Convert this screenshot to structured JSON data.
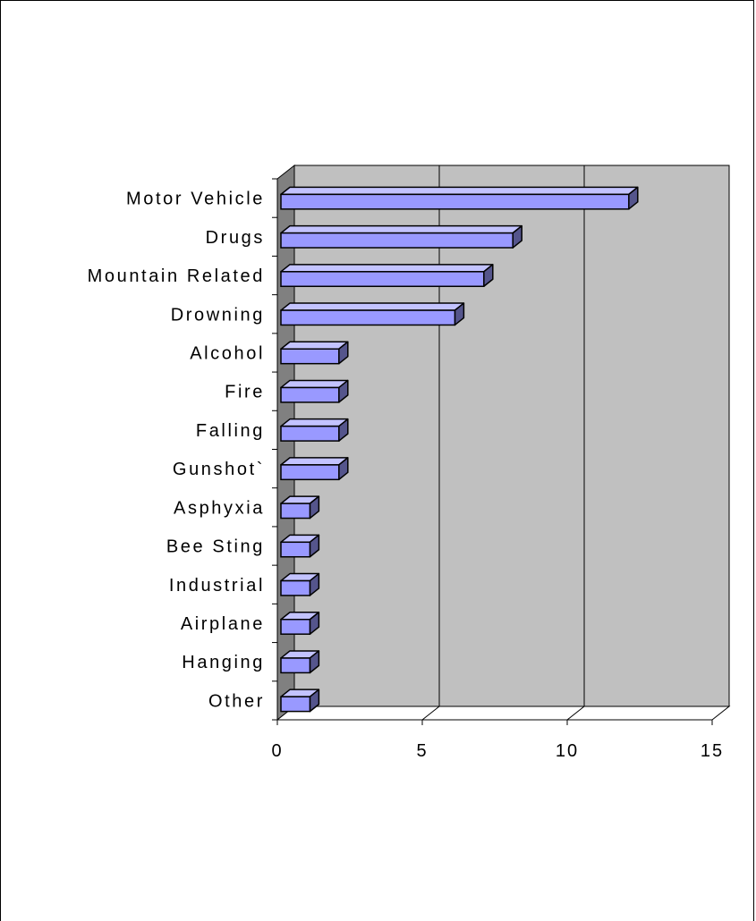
{
  "chart_data": {
    "type": "bar",
    "orientation": "horizontal",
    "style": "3d",
    "categories": [
      "Motor Vehicle",
      "Drugs",
      "Mountain Related",
      "Drowning",
      "Alcohol",
      "Fire",
      "Falling",
      "Gunshot`",
      "Asphyxia",
      "Bee Sting",
      "Industrial",
      "Airplane",
      "Hanging",
      "Other"
    ],
    "values": [
      12,
      8,
      7,
      6,
      2,
      2,
      2,
      2,
      1,
      1,
      1,
      1,
      1,
      1
    ],
    "xlim": [
      0,
      15
    ],
    "xticks": [
      "0",
      "5",
      "10",
      "15"
    ],
    "title": "",
    "xlabel": "",
    "ylabel": "",
    "grid": "vertical major gridlines",
    "legend": "none",
    "colors": {
      "bar_front": "#9999ff",
      "bar_top": "#c3c3ff",
      "bar_side": "#55558c",
      "back_wall": "#c0c0c0",
      "side_wall": "#808080",
      "floor": "#ffffff"
    }
  }
}
